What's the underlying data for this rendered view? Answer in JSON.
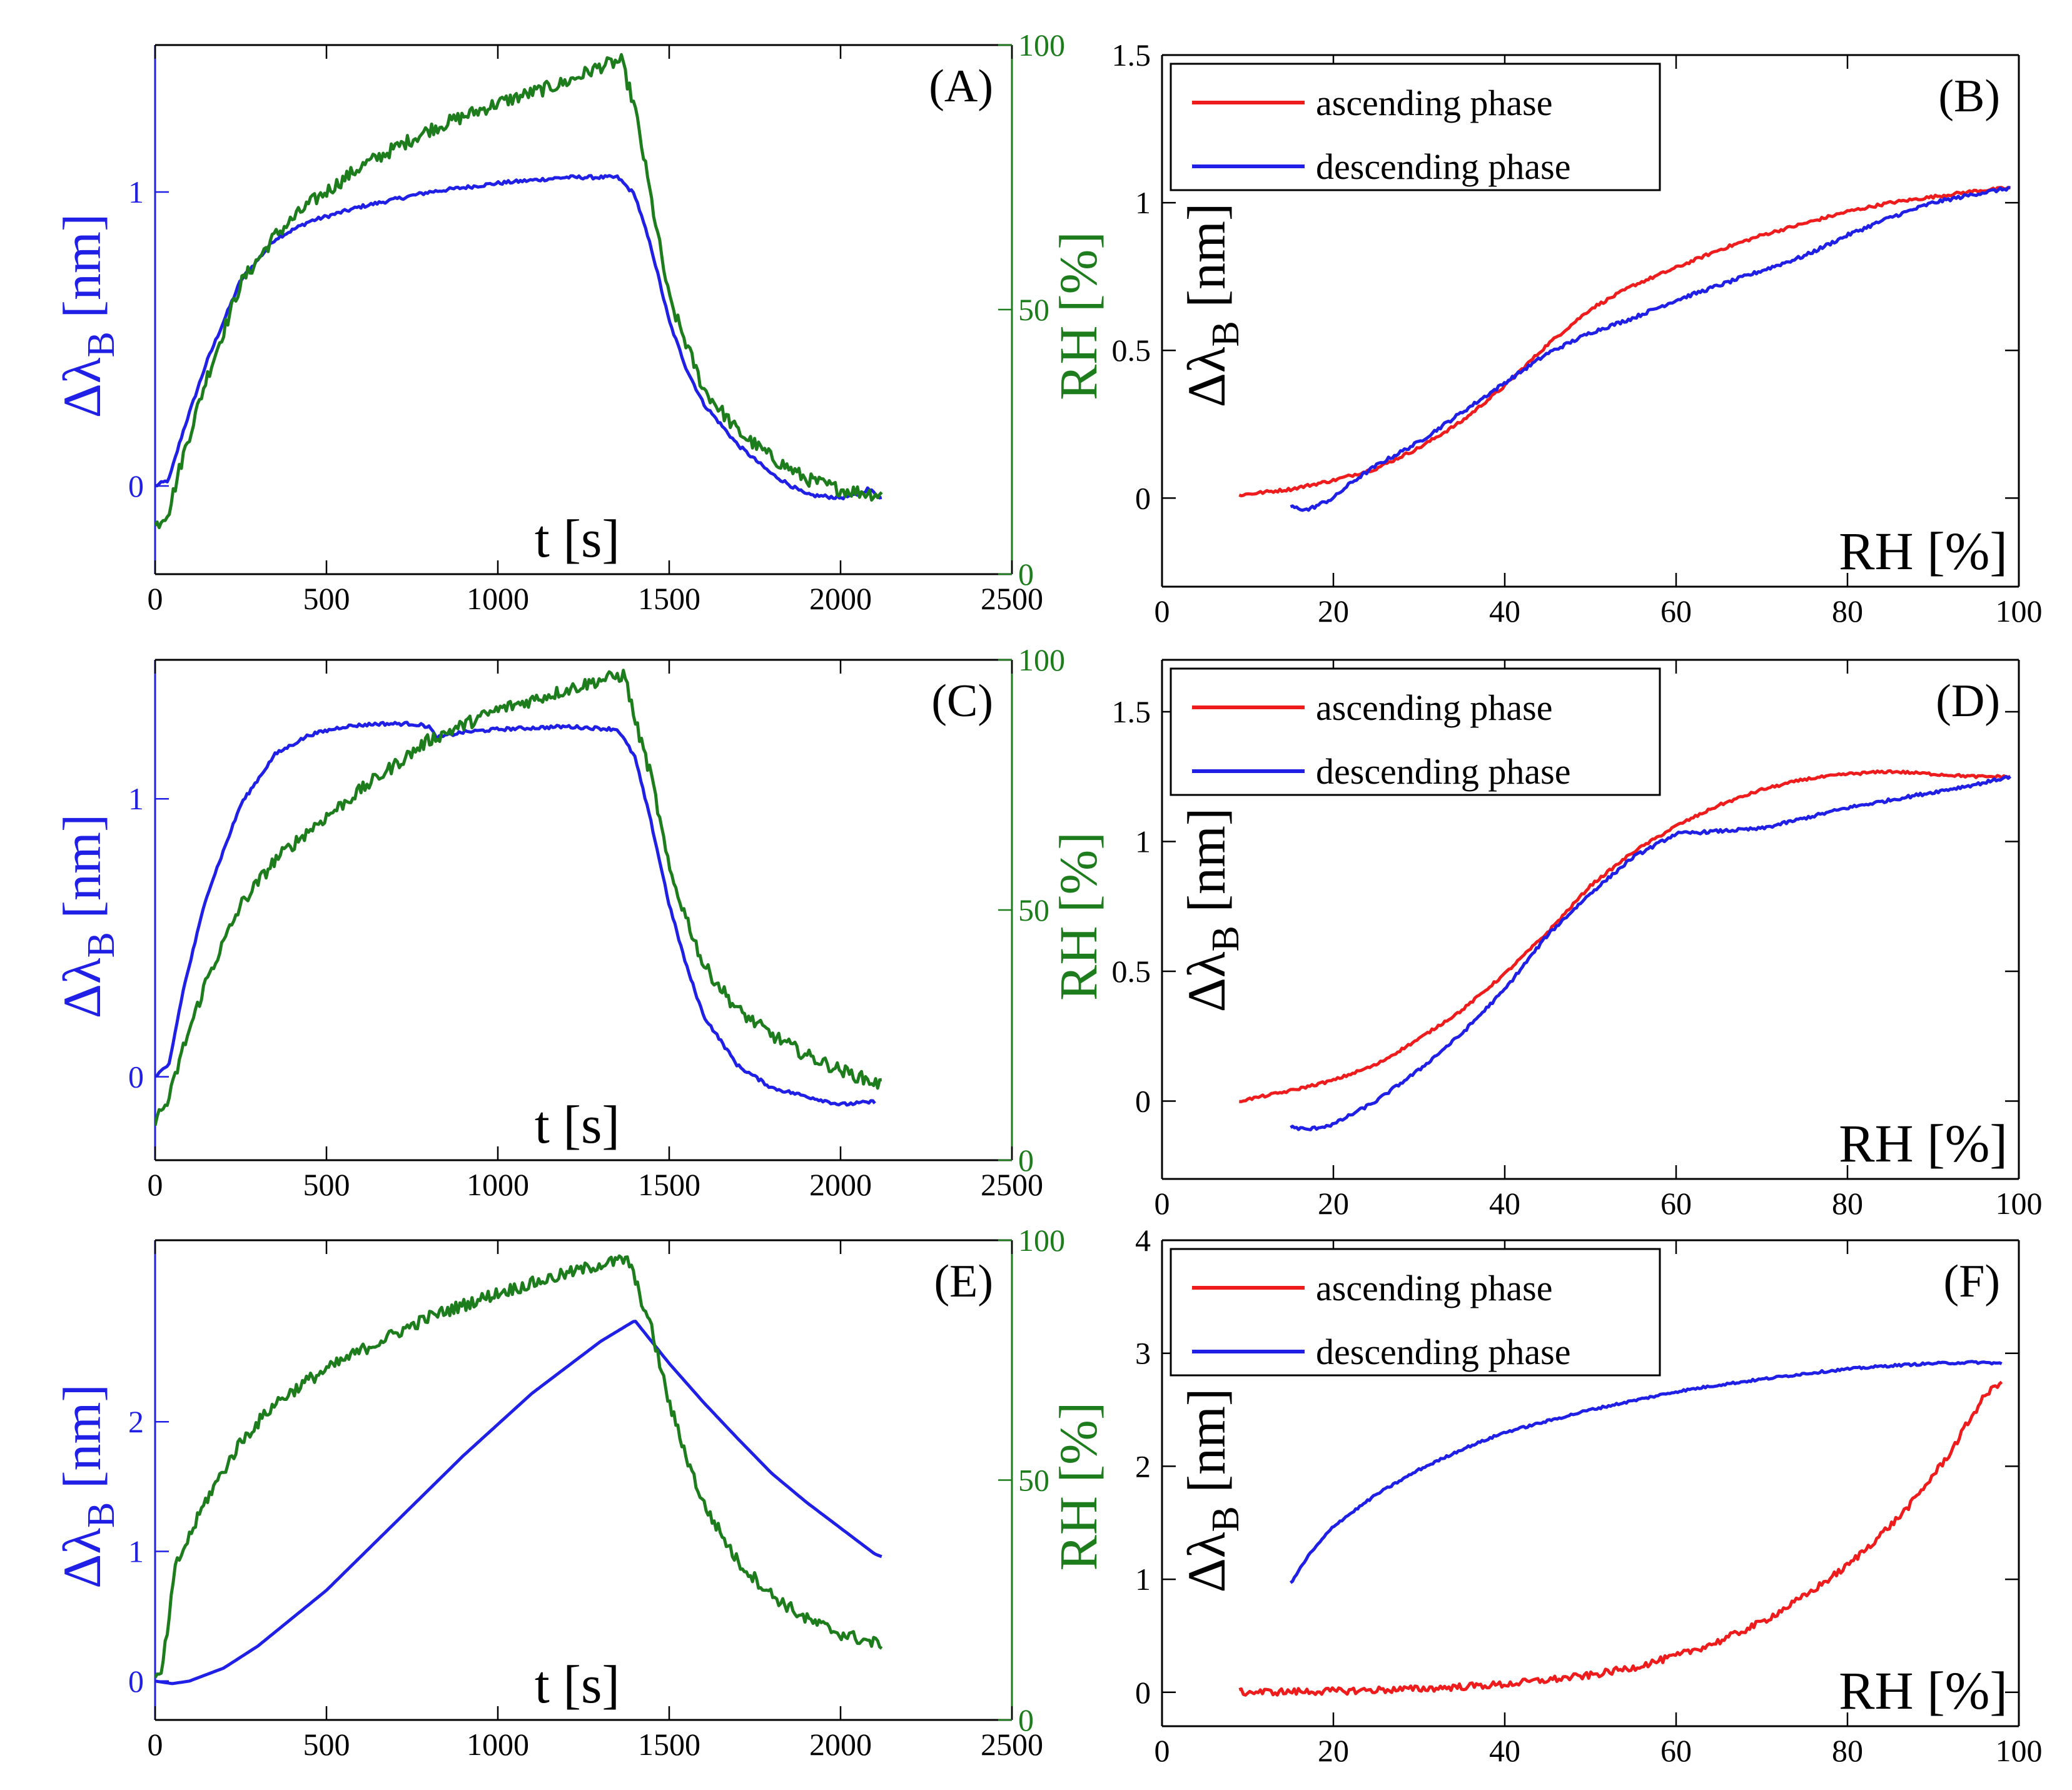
{
  "figure": {
    "panel_count": 6
  },
  "colors": {
    "blue": "#1f1fe6",
    "green": "#1d7d1d",
    "red": "#ee1c1c",
    "black": "#000000"
  },
  "chart_data": [
    {
      "id": "A",
      "type": "line",
      "label": "(A)",
      "xlabel_inside": "t [s]",
      "ylabel_left": "Δλ_B [nm]",
      "ylabel_right": "RH [%]",
      "xlim": [
        0,
        2500
      ],
      "ylim": [
        -0.3,
        1.5
      ],
      "y2lim": [
        0,
        100
      ],
      "xticks": [
        0,
        500,
        1000,
        1500,
        2000,
        2500
      ],
      "yticks": [
        0,
        1
      ],
      "y2ticks": [
        0,
        50,
        100
      ],
      "series": [
        {
          "name": "Δλ_B",
          "axis": "left",
          "color": "blue",
          "noise": 0.006,
          "x": [
            0,
            40,
            80,
            150,
            250,
            350,
            450,
            600,
            800,
            1000,
            1200,
            1350,
            1400,
            1450,
            1500,
            1550,
            1600,
            1700,
            1800,
            1900,
            2000,
            2050,
            2080,
            2120
          ],
          "y": [
            0.0,
            0.02,
            0.18,
            0.42,
            0.7,
            0.84,
            0.9,
            0.95,
            1.0,
            1.03,
            1.05,
            1.05,
            0.99,
            0.8,
            0.56,
            0.4,
            0.28,
            0.14,
            0.04,
            -0.03,
            -0.04,
            -0.03,
            -0.01,
            -0.04
          ]
        },
        {
          "name": "RH",
          "axis": "right",
          "color": "green",
          "noise": 1.3,
          "x": [
            0,
            40,
            80,
            150,
            250,
            350,
            450,
            600,
            800,
            1000,
            1200,
            1300,
            1360,
            1400,
            1450,
            1500,
            1600,
            1700,
            1800,
            1900,
            2000,
            2120
          ],
          "y": [
            9,
            12,
            22,
            37,
            55,
            64,
            70,
            77,
            84,
            89,
            93,
            96,
            97,
            88,
            70,
            52,
            35,
            27,
            22,
            18,
            16,
            15
          ]
        }
      ]
    },
    {
      "id": "B",
      "type": "line",
      "label": "(B)",
      "xlabel_inside": "RH [%]",
      "ylabel_left": "Δλ_B [nm]",
      "xlim": [
        0,
        100
      ],
      "ylim": [
        -0.3,
        1.5
      ],
      "xticks": [
        0,
        20,
        40,
        60,
        80,
        100
      ],
      "yticks": [
        0,
        0.5,
        1,
        1.5
      ],
      "legend": [
        "ascending phase",
        "descending phase"
      ],
      "series": [
        {
          "name": "ascending phase",
          "color": "red",
          "noise": 0.005,
          "x": [
            9,
            15,
            20,
            25,
            30,
            35,
            40,
            45,
            50,
            55,
            60,
            65,
            70,
            75,
            80,
            85,
            90,
            95,
            99
          ],
          "y": [
            0.01,
            0.03,
            0.06,
            0.1,
            0.17,
            0.26,
            0.38,
            0.52,
            0.64,
            0.72,
            0.78,
            0.84,
            0.89,
            0.93,
            0.97,
            1.0,
            1.02,
            1.04,
            1.05
          ]
        },
        {
          "name": "descending phase",
          "color": "blue",
          "noise": 0.006,
          "x": [
            99,
            95,
            90,
            85,
            80,
            75,
            70,
            65,
            60,
            55,
            50,
            45,
            40,
            35,
            30,
            25,
            22,
            20,
            17,
            15
          ],
          "y": [
            1.05,
            1.03,
            1.0,
            0.95,
            0.89,
            0.82,
            0.77,
            0.72,
            0.67,
            0.61,
            0.56,
            0.49,
            0.39,
            0.29,
            0.19,
            0.11,
            0.05,
            0.0,
            -0.04,
            -0.03
          ]
        }
      ]
    },
    {
      "id": "C",
      "type": "line",
      "label": "(C)",
      "xlabel_inside": "t [s]",
      "ylabel_left": "Δλ_B [nm]",
      "ylabel_right": "RH [%]",
      "xlim": [
        0,
        2500
      ],
      "ylim": [
        -0.3,
        1.5
      ],
      "y2lim": [
        0,
        100
      ],
      "xticks": [
        0,
        500,
        1000,
        1500,
        2000,
        2500
      ],
      "yticks": [
        0,
        1
      ],
      "y2ticks": [
        0,
        50,
        100
      ],
      "series": [
        {
          "name": "Δλ_B",
          "axis": "left",
          "color": "blue",
          "noise": 0.006,
          "x": [
            0,
            40,
            80,
            150,
            250,
            350,
            450,
            550,
            650,
            750,
            800,
            820,
            900,
            1000,
            1200,
            1350,
            1400,
            1450,
            1500,
            1550,
            1600,
            1700,
            1800,
            1900,
            2000,
            2100
          ],
          "y": [
            0.0,
            0.04,
            0.3,
            0.65,
            0.98,
            1.16,
            1.23,
            1.26,
            1.27,
            1.27,
            1.26,
            1.22,
            1.24,
            1.25,
            1.26,
            1.25,
            1.15,
            0.9,
            0.62,
            0.4,
            0.22,
            0.04,
            -0.04,
            -0.07,
            -0.1,
            -0.09
          ]
        },
        {
          "name": "RH",
          "axis": "right",
          "color": "green",
          "noise": 1.3,
          "x": [
            0,
            40,
            80,
            150,
            250,
            350,
            450,
            600,
            800,
            1000,
            1200,
            1300,
            1370,
            1400,
            1450,
            1500,
            1600,
            1700,
            1800,
            1900,
            2000,
            2120
          ],
          "y": [
            8,
            12,
            22,
            36,
            51,
            60,
            66,
            74,
            84,
            90,
            94,
            96,
            97,
            88,
            76,
            58,
            39,
            30,
            25,
            21,
            18,
            15
          ]
        }
      ]
    },
    {
      "id": "D",
      "type": "line",
      "label": "(D)",
      "xlabel_inside": "RH [%]",
      "ylabel_left": "Δλ_B [nm]",
      "xlim": [
        0,
        100
      ],
      "ylim": [
        -0.3,
        1.7
      ],
      "xticks": [
        0,
        20,
        40,
        60,
        80,
        100
      ],
      "yticks": [
        0,
        0.5,
        1,
        1.5
      ],
      "legend": [
        "ascending phase",
        "descending phase"
      ],
      "series": [
        {
          "name": "ascending phase",
          "color": "red",
          "noise": 0.005,
          "x": [
            9,
            15,
            20,
            25,
            30,
            35,
            40,
            45,
            50,
            55,
            60,
            65,
            70,
            75,
            80,
            85,
            90,
            95,
            99
          ],
          "y": [
            0.0,
            0.04,
            0.08,
            0.14,
            0.24,
            0.35,
            0.49,
            0.65,
            0.83,
            0.96,
            1.06,
            1.14,
            1.2,
            1.24,
            1.26,
            1.27,
            1.26,
            1.25,
            1.25
          ]
        },
        {
          "name": "descending phase",
          "color": "blue",
          "noise": 0.006,
          "x": [
            99,
            95,
            90,
            85,
            80,
            75,
            70,
            65,
            60,
            55,
            50,
            45,
            40,
            35,
            30,
            25,
            20,
            17,
            15
          ],
          "y": [
            1.25,
            1.22,
            1.19,
            1.16,
            1.13,
            1.09,
            1.05,
            1.04,
            1.03,
            0.94,
            0.8,
            0.64,
            0.43,
            0.26,
            0.12,
            0.0,
            -0.09,
            -0.11,
            -0.1
          ]
        }
      ]
    },
    {
      "id": "E",
      "type": "line",
      "label": "(E)",
      "xlabel_inside": "t [s]",
      "ylabel_left": "Δλ_B [nm]",
      "ylabel_right": "RH [%]",
      "xlim": [
        0,
        2500
      ],
      "ylim": [
        -0.3,
        3.4
      ],
      "y2lim": [
        0,
        100
      ],
      "xticks": [
        0,
        500,
        1000,
        1500,
        2000,
        2500
      ],
      "yticks": [
        0,
        1,
        2
      ],
      "y2ticks": [
        0,
        50,
        100
      ],
      "series": [
        {
          "name": "Δλ_B",
          "axis": "left",
          "color": "blue",
          "noise": 0.0,
          "x": [
            0,
            50,
            100,
            200,
            300,
            500,
            700,
            900,
            1100,
            1300,
            1400,
            1500,
            1600,
            1700,
            1800,
            1900,
            2000,
            2100,
            2120
          ],
          "y": [
            0.0,
            -0.02,
            0.0,
            0.1,
            0.27,
            0.7,
            1.22,
            1.74,
            2.22,
            2.62,
            2.78,
            2.45,
            2.15,
            1.87,
            1.6,
            1.38,
            1.18,
            0.98,
            0.96
          ]
        },
        {
          "name": "RH",
          "axis": "right",
          "color": "green",
          "noise": 1.3,
          "x": [
            0,
            20,
            60,
            150,
            250,
            350,
            450,
            600,
            800,
            1000,
            1200,
            1300,
            1380,
            1450,
            1500,
            1550,
            1600,
            1700,
            1800,
            1900,
            2000,
            2100,
            2120
          ],
          "y": [
            8,
            10,
            32,
            46,
            58,
            66,
            71,
            77,
            84,
            89,
            93,
            95,
            96,
            81,
            66,
            55,
            45,
            33,
            26,
            21,
            18,
            16,
            16
          ]
        }
      ]
    },
    {
      "id": "F",
      "type": "line",
      "label": "(F)",
      "xlabel_inside": "RH [%]",
      "ylabel_left": "Δλ_B [nm]",
      "xlim": [
        0,
        100
      ],
      "ylim": [
        -0.3,
        4
      ],
      "xticks": [
        0,
        20,
        40,
        60,
        80,
        100
      ],
      "yticks": [
        0,
        1,
        2,
        3,
        4
      ],
      "legend": [
        "ascending phase",
        "descending phase"
      ],
      "series": [
        {
          "name": "ascending phase",
          "color": "red",
          "noise": 0.03,
          "x": [
            9,
            20,
            30,
            40,
            50,
            55,
            60,
            65,
            70,
            75,
            80,
            83,
            86,
            88,
            90,
            92,
            94,
            96,
            98
          ],
          "y": [
            0.0,
            0.01,
            0.03,
            0.07,
            0.15,
            0.22,
            0.32,
            0.45,
            0.62,
            0.85,
            1.12,
            1.33,
            1.55,
            1.72,
            1.92,
            2.12,
            2.38,
            2.62,
            2.76
          ]
        },
        {
          "name": "descending phase",
          "color": "blue",
          "noise": 0.01,
          "x": [
            98,
            95,
            90,
            85,
            80,
            75,
            70,
            65,
            60,
            55,
            50,
            45,
            40,
            35,
            30,
            25,
            20,
            17,
            15
          ],
          "y": [
            2.91,
            2.92,
            2.91,
            2.89,
            2.86,
            2.82,
            2.77,
            2.72,
            2.66,
            2.58,
            2.5,
            2.4,
            2.3,
            2.15,
            1.97,
            1.75,
            1.47,
            1.2,
            0.96
          ]
        }
      ]
    }
  ]
}
